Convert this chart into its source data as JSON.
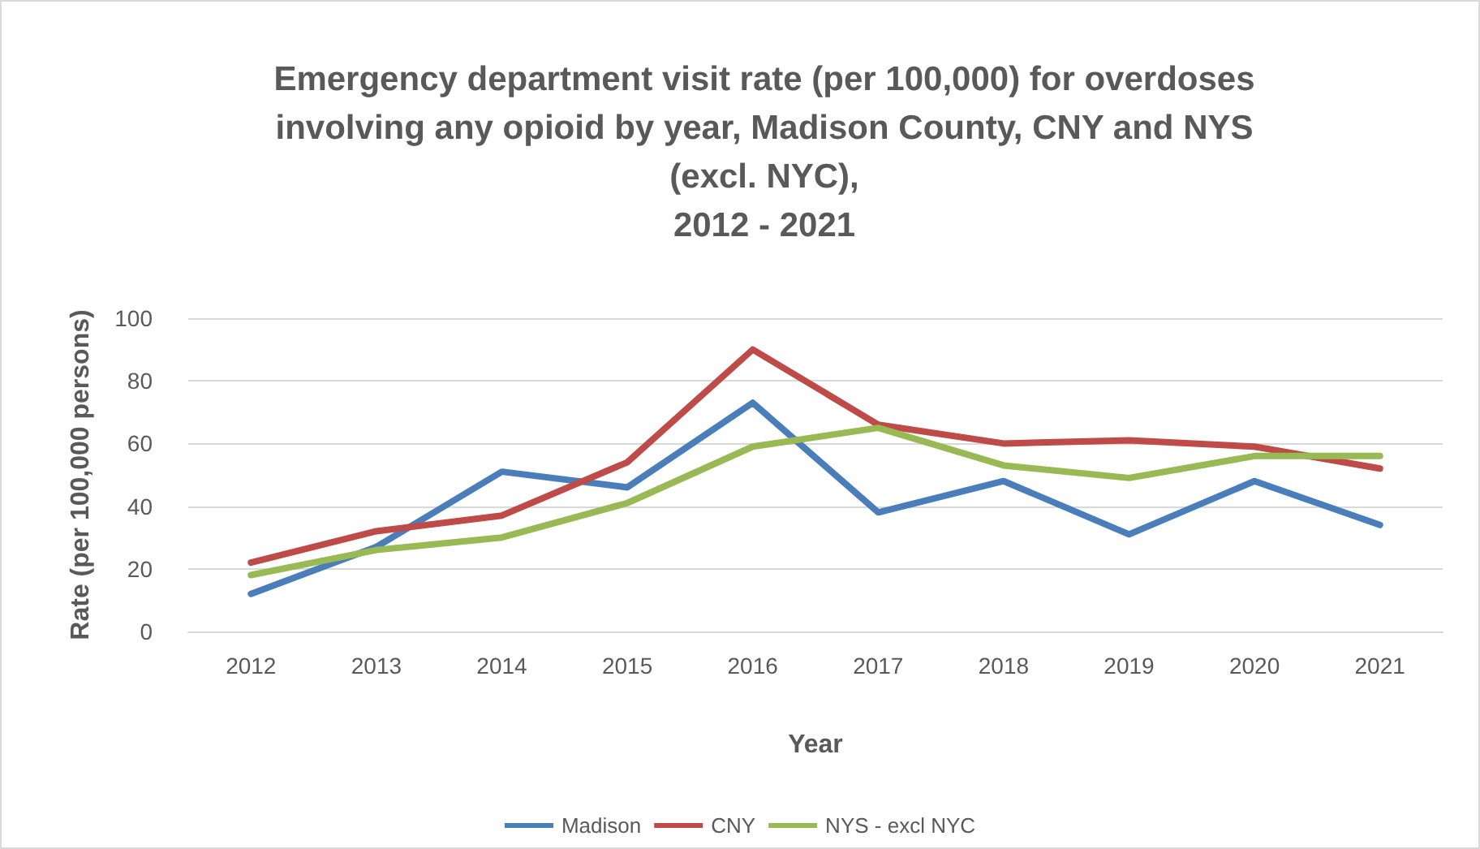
{
  "chart_data": {
    "type": "line",
    "title": "Emergency department visit rate (per 100,000) for overdoses\ninvolving any opioid by year, Madison County, CNY and NYS\n(excl. NYC),\n2012 - 2021",
    "xlabel": "Year",
    "ylabel": "Rate (per 100,000 persons)",
    "categories": [
      "2012",
      "2013",
      "2014",
      "2015",
      "2016",
      "2017",
      "2018",
      "2019",
      "2020",
      "2021"
    ],
    "series": [
      {
        "name": "Madison",
        "color": "#4a7ebb",
        "values": [
          12,
          27,
          51,
          46,
          73,
          38,
          48,
          31,
          48,
          34
        ]
      },
      {
        "name": "CNY",
        "color": "#be4b48",
        "values": [
          22,
          32,
          37,
          54,
          90,
          66,
          60,
          61,
          59,
          52
        ]
      },
      {
        "name": "NYS - excl NYC",
        "color": "#98b954",
        "values": [
          18,
          26,
          30,
          41,
          59,
          65,
          53,
          49,
          56,
          56
        ]
      }
    ],
    "ylim": [
      0,
      100
    ],
    "yticks": [
      0,
      20,
      40,
      60,
      80,
      100
    ],
    "grid": "y",
    "legend": "bottom",
    "marker": "none",
    "line_style": "solid"
  }
}
